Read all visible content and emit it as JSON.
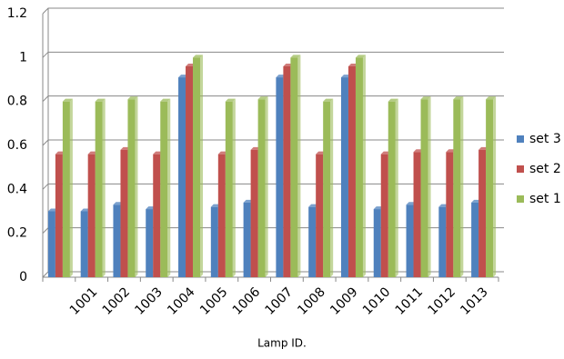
{
  "chart_data": {
    "type": "bar",
    "x_label": "Lamp ID.",
    "categories": [
      null,
      "1001",
      "1002",
      "1003",
      "1004",
      "1005",
      "1006",
      "1007",
      "1008",
      "1009",
      "1010",
      "1011",
      "1012",
      "1013"
    ],
    "series": [
      {
        "name": "set 3",
        "color": "#4f81bd",
        "values": [
          0.3,
          0.3,
          0.33,
          0.31,
          0.91,
          0.32,
          0.34,
          0.91,
          0.32,
          0.91,
          0.31,
          0.33,
          0.32,
          0.34
        ]
      },
      {
        "name": "set 2",
        "color": "#c0504d",
        "values": [
          0.56,
          0.56,
          0.58,
          0.56,
          0.96,
          0.56,
          0.58,
          0.96,
          0.56,
          0.96,
          0.56,
          0.57,
          0.57,
          0.58
        ]
      },
      {
        "name": "set 1",
        "color": "#9bbb59",
        "values": [
          0.8,
          0.8,
          0.81,
          0.8,
          1.0,
          0.8,
          0.81,
          1.0,
          0.8,
          1.0,
          0.8,
          0.81,
          0.81,
          0.81
        ]
      }
    ],
    "ylim": [
      0,
      1.2
    ],
    "yticks": [
      0,
      0.2,
      0.4,
      0.6,
      0.8,
      1,
      1.2
    ],
    "grid": true,
    "legend": "right"
  }
}
